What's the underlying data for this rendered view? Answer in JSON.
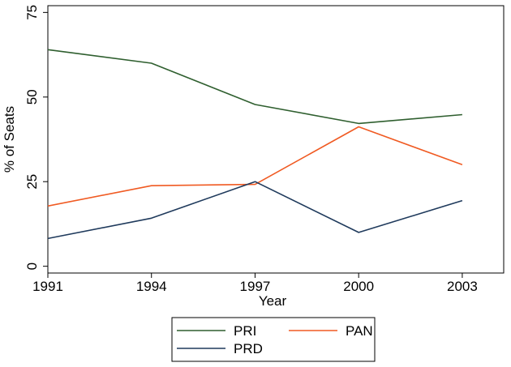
{
  "chart_data": {
    "type": "line",
    "x": [
      1991,
      1994,
      1997,
      2000,
      2003
    ],
    "xticks": [
      "1991",
      "1994",
      "1997",
      "2000",
      "2003"
    ],
    "xlim": [
      1991,
      2004.2
    ],
    "yticks": [
      "0",
      "25",
      "50",
      "75"
    ],
    "ylim": [
      -2,
      77
    ],
    "xlabel": "Year",
    "ylabel": "% of Seats",
    "grid": false,
    "legend_position": "bottom",
    "series": [
      {
        "name": "PRI",
        "color": "#2f5f2f",
        "values": [
          64.0,
          60.0,
          47.8,
          42.2,
          44.8
        ]
      },
      {
        "name": "PAN",
        "color": "#f05a22",
        "values": [
          17.8,
          23.8,
          24.2,
          41.2,
          30.0
        ]
      },
      {
        "name": "PRD",
        "color": "#1f3a5c",
        "values": [
          8.2,
          14.2,
          25.0,
          10.0,
          19.4
        ]
      }
    ]
  }
}
